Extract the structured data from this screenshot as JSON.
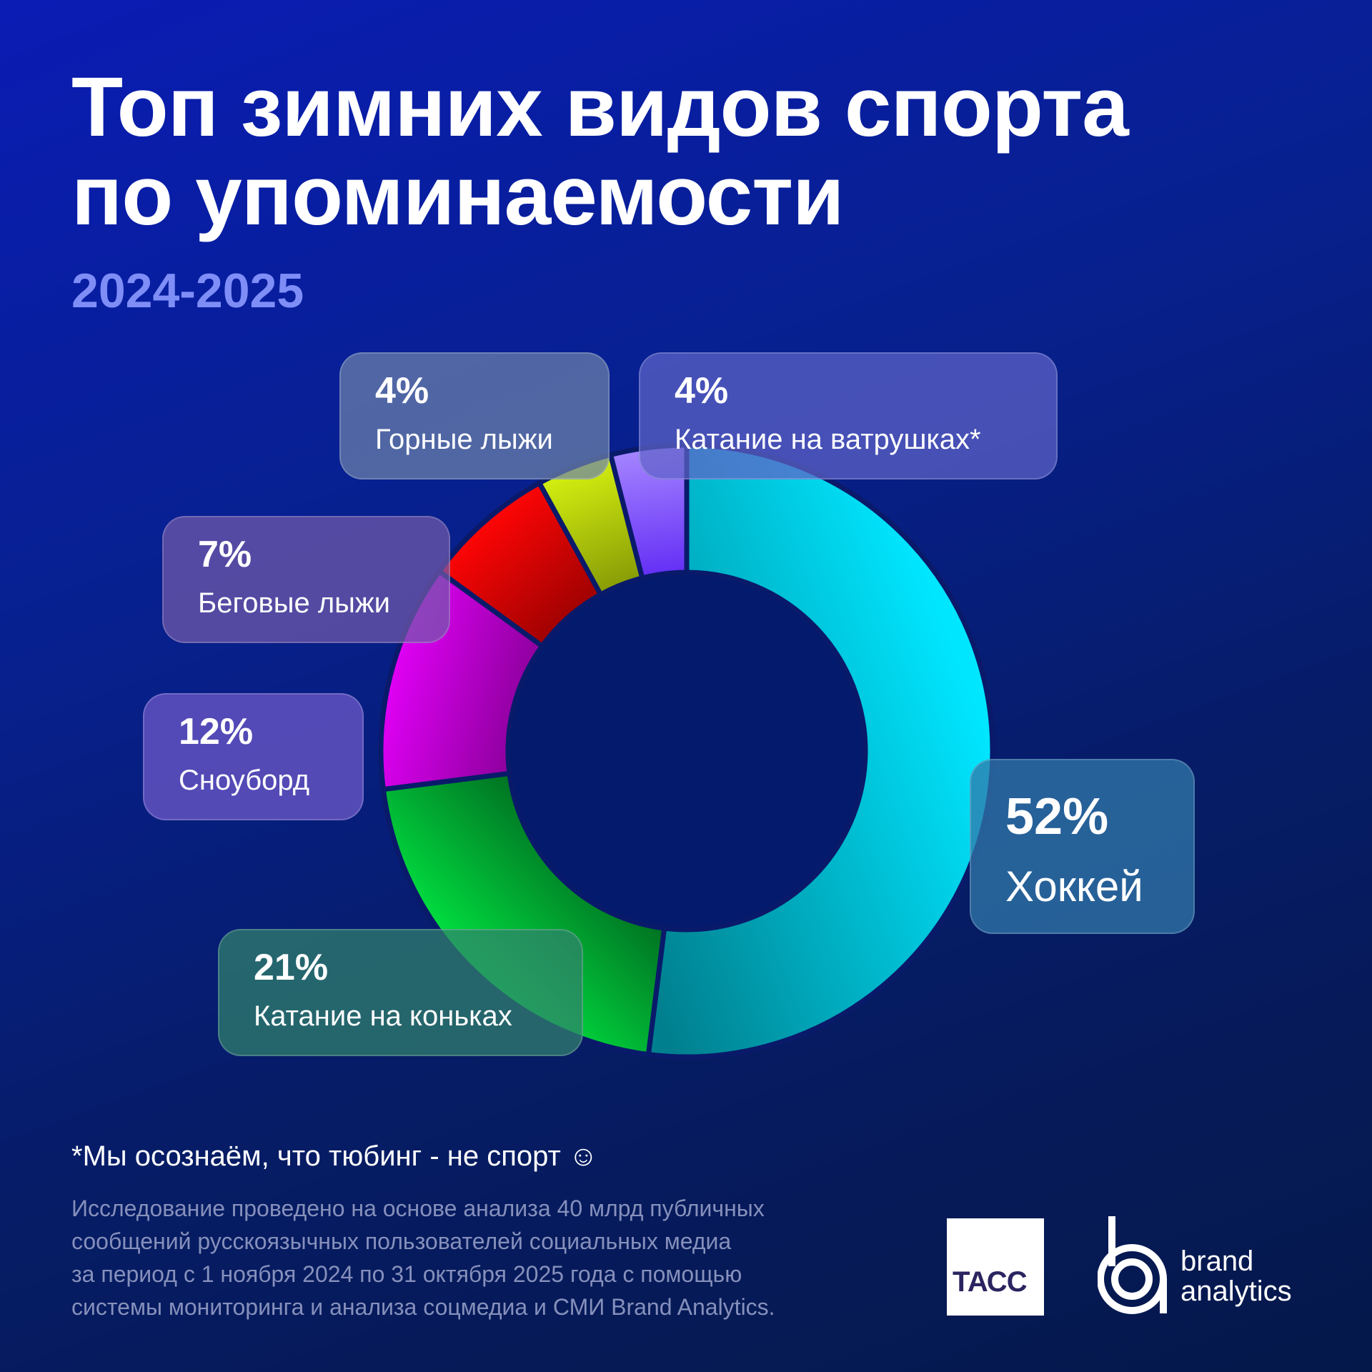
{
  "header": {
    "title_line1": "Топ зимних видов спорта",
    "title_line2": "по упоминаемости",
    "period": "2024-2025"
  },
  "chart_data": {
    "type": "pie",
    "variant": "donut",
    "title": "Топ зимних видов спорта по упоминаемости",
    "subtitle": "2024-2025",
    "unit": "%",
    "start": "top, clockwise",
    "slices": [
      {
        "label": "Хоккей",
        "value": 52,
        "display": "52%",
        "color": "#00e6ff",
        "color_dark": "#00808f"
      },
      {
        "label": "Катание на коньках",
        "value": 21,
        "display": "21%",
        "color": "#00e040",
        "color_dark": "#005a1c"
      },
      {
        "label": "Сноуборд",
        "value": 12,
        "display": "12%",
        "color": "#e000f5",
        "color_dark": "#6a0078"
      },
      {
        "label": "Беговые лыжи",
        "value": 7,
        "display": "7%",
        "color": "#ff0505",
        "color_dark": "#6e0000"
      },
      {
        "label": "Горные лыжи",
        "value": 4,
        "display": "4%",
        "color": "#d4f010",
        "color_dark": "#5e6e00"
      },
      {
        "label": "Катание на ватрушках*",
        "value": 4,
        "display": "4%",
        "color": "#a585ff",
        "color_dark": "#4000f0"
      }
    ]
  },
  "footer": {
    "note": "*Мы осознаём, что тюбинг - не спорт ☺",
    "method_lines": [
      "Исследование проведено на основе анализа 40 млрд публичных",
      "сообщений русскоязычных пользователей социальных медиа",
      "за период с 1 ноября 2024 по 31 октября 2025 года с помощью",
      "системы мониторинга и анализа соцмедиа и СМИ Brand Analytics."
    ],
    "logo_tass": "ТАСС",
    "logo_ba_line1": "brand",
    "logo_ba_line2": "analytics"
  }
}
